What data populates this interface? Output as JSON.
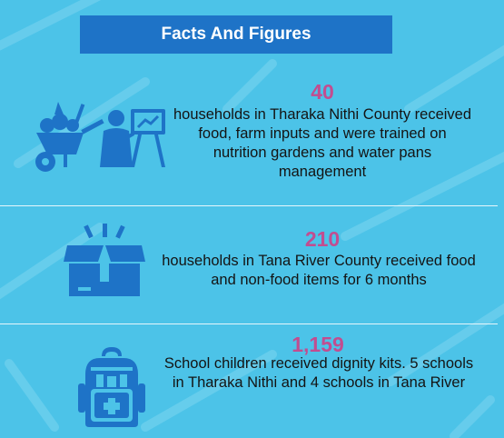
{
  "banner": {
    "title": "Facts And Figures"
  },
  "facts": [
    {
      "number": "40",
      "text": "households in Tharaka Nithi County received food, farm inputs and were trained on nutrition gardens and water pans management",
      "icon": "wheelbarrow-and-trainer-icon"
    },
    {
      "number": "210",
      "text": "households in Tana River County received food and non-food items for 6 months",
      "icon": "open-box-icon"
    },
    {
      "number": "1,159",
      "text": "School children received dignity kits. 5 schools in Tharaka Nithi and 4 schools in Tana River",
      "icon": "backpack-icon"
    }
  ],
  "colors": {
    "background": "#4cc3e8",
    "banner": "#1e73c7",
    "number": "#c24d90",
    "icon": "#1e73c7"
  }
}
